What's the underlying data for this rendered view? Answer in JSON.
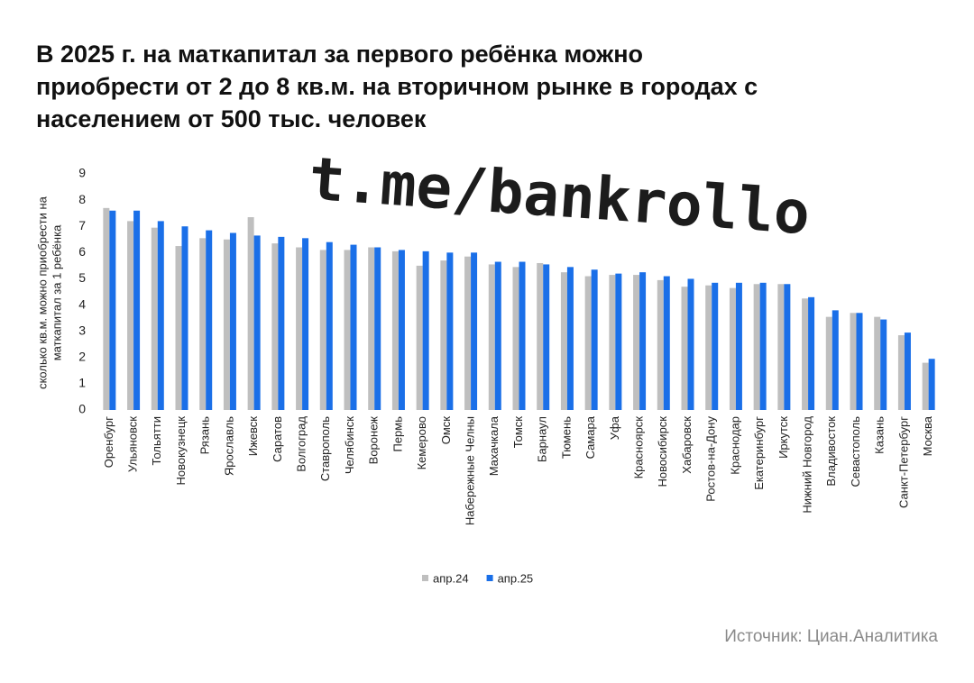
{
  "chart_data": {
    "type": "bar",
    "title": "В 2025 г. на маткапитал за первого ребёнка можно приобрести от 2 до 8 кв.м. на вторичном рынке в городах с населением от 500 тыс. человек",
    "watermark": "t.me/bankrollo",
    "y_label": [
      "сколько кв.м. можно приобрести на",
      "маткапитал за 1 ребёнка"
    ],
    "source": "Источник: Циан.Аналитика",
    "categories": [
      "Оренбург",
      "Ульяновск",
      "Тольятти",
      "Новокузнецк",
      "Рязань",
      "Ярославль",
      "Ижевск",
      "Саратов",
      "Волгоград",
      "Ставрополь",
      "Челябинск",
      "Воронеж",
      "Пермь",
      "Кемерово",
      "Омск",
      "Набережные Челны",
      "Махачкала",
      "Томск",
      "Барнаул",
      "Тюмень",
      "Самара",
      "Уфа",
      "Красноярск",
      "Новосибирск",
      "Хабаровск",
      "Ростов-на-Дону",
      "Краснодар",
      "Екатеринбург",
      "Иркутск",
      "Нижний Новгород",
      "Владивосток",
      "Севастополь",
      "Казань",
      "Санкт-Петербург",
      "Москва"
    ],
    "series": [
      {
        "name": "апр.24",
        "color": "#bfbfbf",
        "values": [
          7.7,
          7.2,
          6.95,
          6.25,
          6.55,
          6.5,
          7.35,
          6.35,
          6.2,
          6.1,
          6.1,
          6.2,
          6.05,
          5.5,
          5.7,
          5.85,
          5.55,
          5.45,
          5.6,
          5.25,
          5.1,
          5.15,
          5.15,
          4.95,
          4.7,
          4.75,
          4.65,
          4.8,
          4.8,
          4.25,
          3.55,
          3.7,
          3.55,
          2.85,
          1.8
        ]
      },
      {
        "name": "апр.25",
        "color": "#1a6fe8",
        "values": [
          7.6,
          7.6,
          7.2,
          7.0,
          6.85,
          6.75,
          6.65,
          6.6,
          6.55,
          6.4,
          6.3,
          6.2,
          6.1,
          6.05,
          6.0,
          6.0,
          5.65,
          5.65,
          5.55,
          5.45,
          5.35,
          5.2,
          5.25,
          5.1,
          5.0,
          4.85,
          4.85,
          4.85,
          4.8,
          4.3,
          3.8,
          3.7,
          3.45,
          2.95,
          1.95
        ]
      }
    ],
    "ylim": [
      0,
      9
    ],
    "yticks": [
      0,
      1,
      2,
      3,
      4,
      5,
      6,
      7,
      8,
      9
    ],
    "grid": false,
    "legend": "bottom"
  }
}
